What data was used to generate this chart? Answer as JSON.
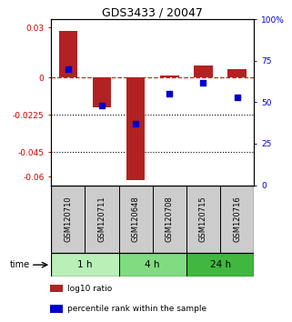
{
  "title": "GDS3433 / 20047",
  "samples": [
    "GSM120710",
    "GSM120711",
    "GSM120648",
    "GSM120708",
    "GSM120715",
    "GSM120716"
  ],
  "log10_ratio": [
    0.028,
    -0.018,
    -0.062,
    0.001,
    0.007,
    0.005
  ],
  "percentile_rank": [
    70,
    48,
    37,
    55,
    62,
    53
  ],
  "groups": [
    {
      "label": "1 h",
      "indices": [
        0,
        1
      ],
      "color": "#b8f0b8"
    },
    {
      "label": "4 h",
      "indices": [
        2,
        3
      ],
      "color": "#80dc80"
    },
    {
      "label": "24 h",
      "indices": [
        4,
        5
      ],
      "color": "#40b840"
    }
  ],
  "bar_color": "#b22222",
  "point_color": "#0000cc",
  "ylim_left": [
    -0.065,
    0.035
  ],
  "ylim_right": [
    0,
    100
  ],
  "yticks_left": [
    0.03,
    0.0,
    -0.0225,
    -0.045,
    -0.06
  ],
  "yticks_right": [
    100,
    75,
    50,
    25,
    0
  ],
  "ytick_labels_left": [
    "0.03",
    "0",
    "-0.0225",
    "-0.045",
    "-0.06"
  ],
  "ytick_labels_right": [
    "100%",
    "75",
    "50",
    "25",
    "0"
  ],
  "dotted_lines": [
    -0.0225,
    -0.045
  ],
  "sample_box_color": "#cccccc",
  "time_label": "time",
  "legend_items": [
    {
      "label": "log10 ratio",
      "color": "#b22222"
    },
    {
      "label": "percentile rank within the sample",
      "color": "#0000cc"
    }
  ]
}
